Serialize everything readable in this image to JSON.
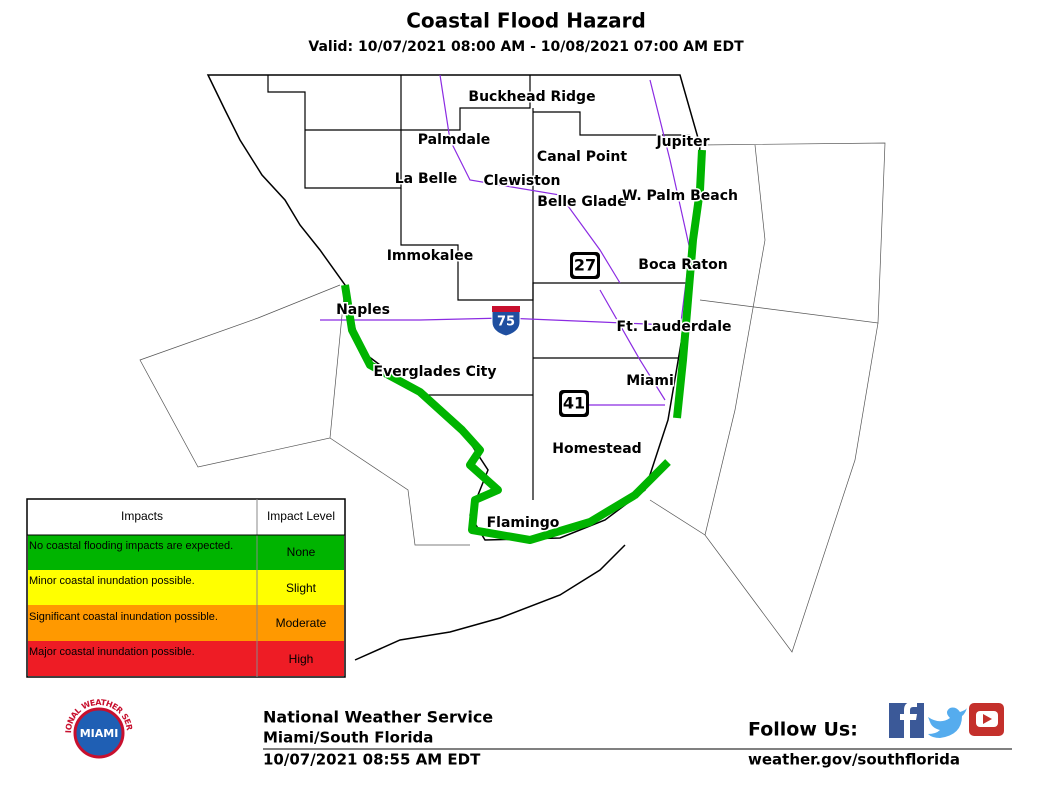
{
  "header": {
    "title": "Coastal Flood Hazard",
    "subtitle": "Valid: 10/07/2021 08:00 AM - 10/08/2021 07:00 AM EDT"
  },
  "places": [
    "Buckhead Ridge",
    "Palmdale",
    "Canal Point",
    "Jupiter",
    "La Belle",
    "Clewiston",
    "Belle Glade",
    "W. Palm Beach",
    "Immokalee",
    "Boca Raton",
    "Naples",
    "Ft. Lauderdale",
    "Everglades City",
    "Miami",
    "Homestead",
    "Flamingo"
  ],
  "highways": [
    "27",
    "75",
    "41"
  ],
  "legend": {
    "headers": [
      "Impacts",
      "Impact Level"
    ],
    "rows": [
      [
        "No coastal flooding impacts are expected.",
        "None"
      ],
      [
        "Minor coastal inundation possible.",
        "Slight"
      ],
      [
        "Significant coastal inundation possible.",
        "Moderate"
      ],
      [
        "Major coastal inundation possible.",
        "High"
      ]
    ]
  },
  "logo": {
    "ring": "NATIONAL WEATHER SERVICE",
    "center": "MIAMI"
  },
  "footer": {
    "agency": "National Weather Service",
    "office": "Miami/South Florida",
    "issued": "10/07/2021 08:55 AM EDT",
    "follow": "Follow Us:",
    "url": "weather.gov/southflorida"
  }
}
